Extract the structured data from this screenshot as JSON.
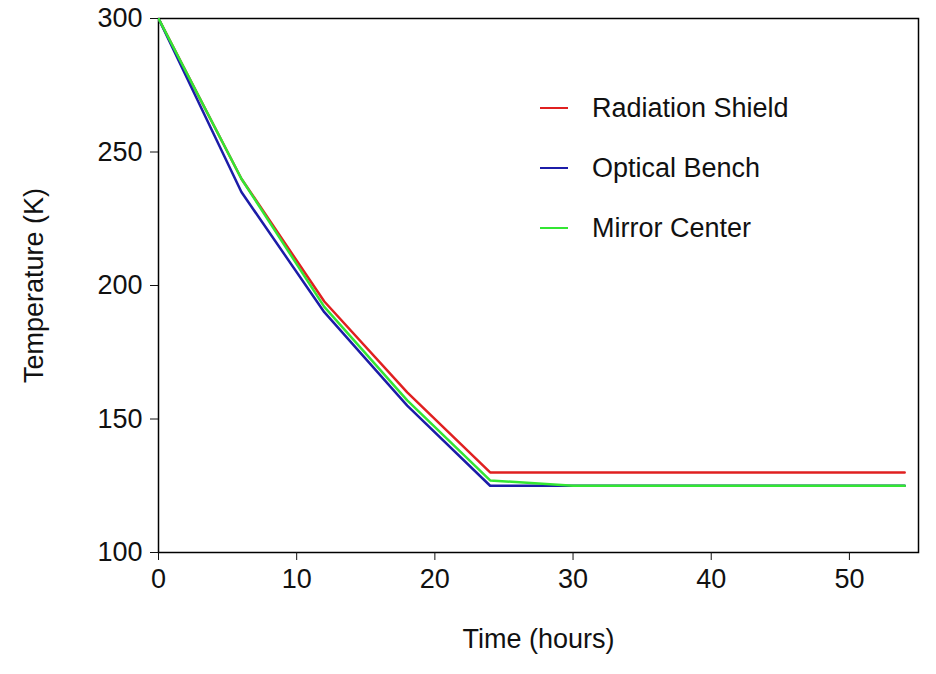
{
  "chart_data": {
    "type": "line",
    "x_label": "Time (hours)",
    "y_label": "Temperature (K)",
    "x": [
      0,
      6,
      12,
      18,
      24,
      30,
      54
    ],
    "series": [
      {
        "name": "Radiation Shield",
        "color": "#e02020",
        "values": [
          300,
          240,
          194,
          160,
          130,
          130,
          130
        ]
      },
      {
        "name": "Optical Bench",
        "color": "#1c1ca8",
        "values": [
          300,
          235,
          190,
          155,
          125,
          125,
          125
        ]
      },
      {
        "name": "Mirror Center",
        "color": "#33e633",
        "values": [
          300,
          240,
          192,
          157,
          127,
          125,
          125
        ]
      }
    ],
    "xlim": [
      0,
      55
    ],
    "xticks": [
      0,
      10,
      20,
      30,
      40,
      50
    ],
    "ylim": [
      100,
      300
    ],
    "yticks": [
      100,
      150,
      200,
      250,
      300
    ],
    "grid": false,
    "legend": "upper right"
  }
}
